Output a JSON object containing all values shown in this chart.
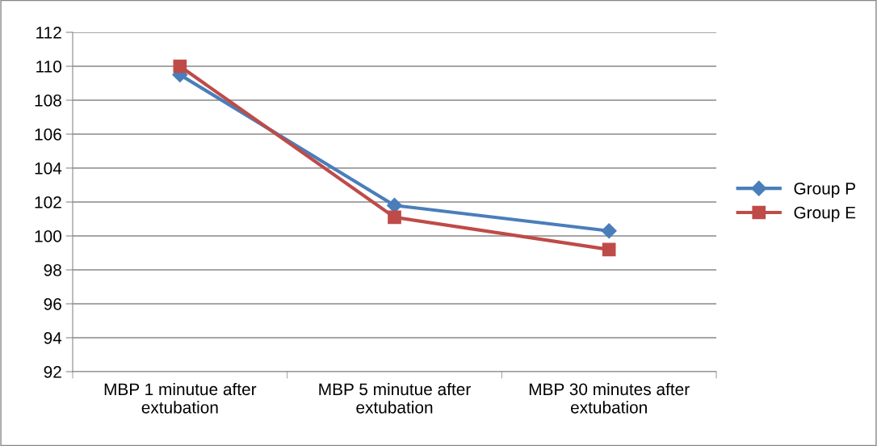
{
  "chart_data": {
    "type": "line",
    "categories": [
      "MBP 1 minutue after extubation",
      "MBP 5 minutue after extubation",
      "MBP 30 minutes after extubation"
    ],
    "series": [
      {
        "name": "Group P",
        "color": "#4a7ebb",
        "marker": "diamond",
        "values": [
          109.5,
          101.8,
          100.3
        ]
      },
      {
        "name": "Group E",
        "color": "#be4b48",
        "marker": "square",
        "values": [
          110.0,
          101.1,
          99.2
        ]
      }
    ],
    "ylim": [
      92,
      112
    ],
    "yticks": [
      92,
      94,
      96,
      98,
      100,
      102,
      104,
      106,
      108,
      110,
      112
    ],
    "grid": "y",
    "legend": "right",
    "line_style": "solid"
  }
}
